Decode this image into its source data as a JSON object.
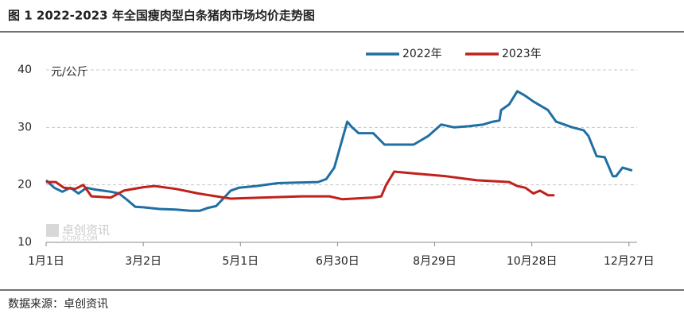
{
  "chart_data": {
    "type": "line",
    "title": "图 1 2022-2023 年全国瘦肉型白条猪肉市场均价走势图",
    "y_label": "元/公斤",
    "source": "数据来源：卓创资讯",
    "watermark": "卓创资讯",
    "watermark_sub": "SCI99.COM",
    "xlim": [
      0,
      365
    ],
    "xticks": [
      {
        "value": 0,
        "label": "1月1日"
      },
      {
        "value": 60,
        "label": "3月2日"
      },
      {
        "value": 120,
        "label": "5月1日"
      },
      {
        "value": 180,
        "label": "6月30日"
      },
      {
        "value": 240,
        "label": "8月29日"
      },
      {
        "value": 300,
        "label": "10月28日"
      },
      {
        "value": 360,
        "label": "12月27日"
      }
    ],
    "ylim": [
      10,
      40
    ],
    "yticks": [
      10,
      20,
      30,
      40
    ],
    "grid": true,
    "series": [
      {
        "name": "2022年",
        "color": "#1f6fa3",
        "x": [
          0,
          5,
          10,
          15,
          20,
          25,
          30,
          35,
          40,
          45,
          50,
          55,
          60,
          70,
          80,
          89,
          95,
          100,
          105,
          109,
          114,
          119,
          130,
          143,
          155,
          168,
          173,
          178,
          183,
          186,
          189,
          193,
          202,
          209,
          220,
          227,
          236,
          244,
          252,
          261,
          270,
          276,
          280,
          281,
          286,
          291,
          296,
          301,
          310,
          315,
          325,
          332,
          335,
          340,
          345,
          350,
          352,
          356,
          362
        ],
        "values": [
          20.8,
          19.5,
          18.8,
          19.5,
          18.5,
          19.5,
          19.2,
          19.0,
          18.8,
          18.5,
          17.4,
          16.2,
          16.1,
          15.8,
          15.7,
          15.5,
          15.5,
          16.0,
          16.3,
          17.5,
          19.0,
          19.5,
          19.8,
          20.3,
          20.4,
          20.5,
          21.0,
          23.0,
          28.0,
          31.0,
          30.0,
          29.0,
          29.0,
          27.0,
          27.0,
          27.0,
          28.5,
          30.5,
          30.0,
          30.2,
          30.5,
          31.0,
          31.2,
          33.0,
          34.0,
          36.3,
          35.5,
          34.5,
          33.0,
          31.0,
          30.0,
          29.5,
          28.5,
          25.0,
          24.8,
          21.5,
          21.5,
          23.0,
          22.5
        ]
      },
      {
        "name": "2023年",
        "color": "#c0211b",
        "x": [
          0,
          6,
          11,
          18,
          23,
          28,
          40,
          48,
          60,
          67,
          80,
          94,
          114,
          134,
          158,
          175,
          183,
          202,
          207,
          210,
          215,
          227,
          247,
          266,
          286,
          291,
          296,
          301,
          305,
          310,
          314
        ],
        "values": [
          20.5,
          20.5,
          19.5,
          19.3,
          20.0,
          18.0,
          17.8,
          19.0,
          19.6,
          19.8,
          19.3,
          18.5,
          17.6,
          17.8,
          18.0,
          18.0,
          17.5,
          17.8,
          18.0,
          20.0,
          22.3,
          22.0,
          21.5,
          20.8,
          20.5,
          19.8,
          19.5,
          18.5,
          19.0,
          18.2,
          18.2
        ]
      }
    ]
  }
}
